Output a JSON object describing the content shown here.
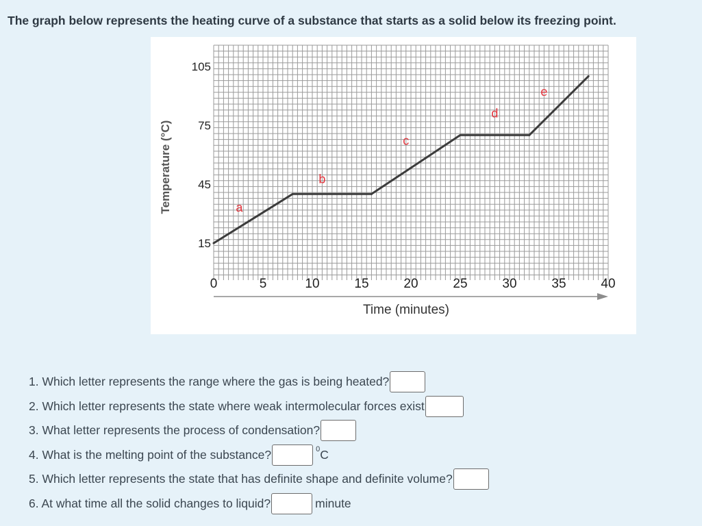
{
  "intro_text": "The graph below represents the heating curve of a substance that starts as a solid below its freezing point.",
  "chart_data": {
    "type": "line",
    "xlabel": "Time (minutes)",
    "ylabel": "Temperature (°C)",
    "x_ticks": [
      0,
      5,
      10,
      15,
      20,
      25,
      30,
      35,
      40
    ],
    "y_ticks": [
      15,
      45,
      75,
      105
    ],
    "grid": true,
    "series": [
      {
        "x": [
          0,
          8,
          16,
          25,
          32,
          38
        ],
        "y": [
          15,
          40,
          40,
          70,
          70,
          100
        ]
      }
    ],
    "segment_labels": [
      {
        "label": "a",
        "x": 2.6,
        "y": 31
      },
      {
        "label": "b",
        "x": 11.0,
        "y": 45.5
      },
      {
        "label": "c",
        "x": 19.5,
        "y": 65
      },
      {
        "label": "d",
        "x": 28.5,
        "y": 79
      },
      {
        "label": "e",
        "x": 33.5,
        "y": 90
      }
    ]
  },
  "questions": [
    {
      "text": "1. Which letter represents the range where the gas is being heated?",
      "value": "",
      "unit": "",
      "box_width": 52
    },
    {
      "text": "2. Which letter represents the state where weak intermolecular forces exist",
      "value": "",
      "unit": "",
      "box_width": 56
    },
    {
      "text": "3. What letter represents the process of condensation?",
      "value": "",
      "unit": "",
      "box_width": 52
    },
    {
      "text": "4. What is the melting point of the substance?",
      "value": "",
      "unit_sup": "0",
      "unit": "C",
      "box_width": 60
    },
    {
      "text": "5. Which letter represents the state that has definite shape and definite volume?",
      "value": "",
      "unit": "",
      "box_width": 52
    },
    {
      "text": "6. At what time all the solid changes to liquid?",
      "value": "",
      "unit": "minute",
      "box_width": 60
    }
  ]
}
